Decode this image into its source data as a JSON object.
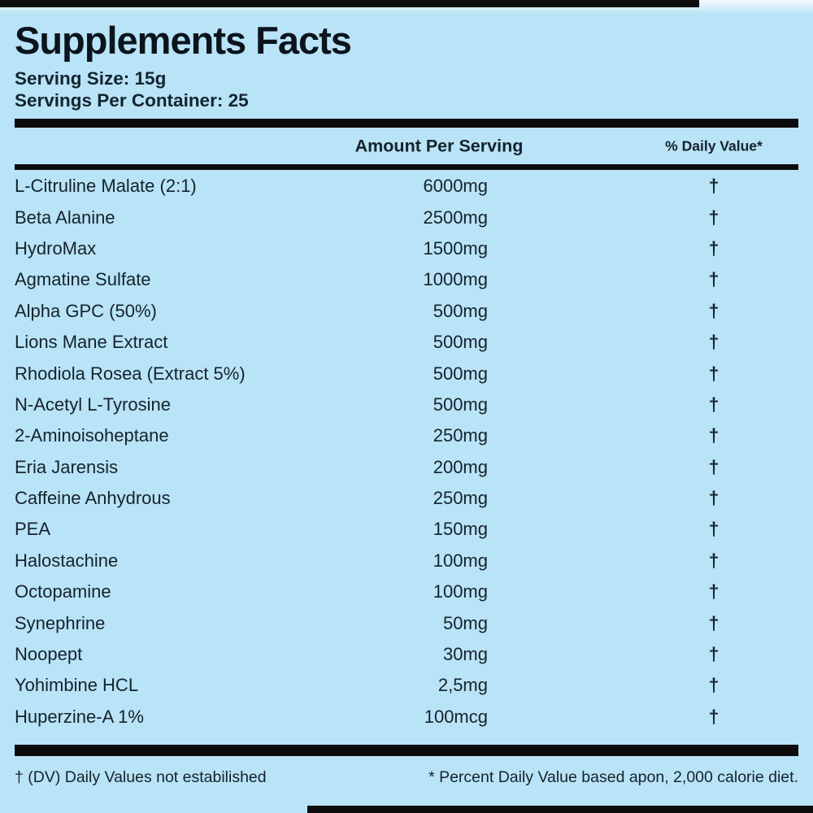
{
  "page": {
    "background_color": "#b9e3f6",
    "text_color": "#14232c",
    "bar_color": "#0c0c0c"
  },
  "header": {
    "title": "Supplements Facts",
    "serving_size": "Serving Size: 15g",
    "servings_per_container": "Servings Per Container: 25"
  },
  "table": {
    "columns": {
      "amount": "Amount Per Serving",
      "daily_value": "% Daily Value*"
    },
    "rows": [
      {
        "name": "L-Citruline Malate (2:1)",
        "amount": "6000mg",
        "dv": "†"
      },
      {
        "name": "Beta Alanine",
        "amount": "2500mg",
        "dv": "†"
      },
      {
        "name": "HydroMax",
        "amount": "1500mg",
        "dv": "†"
      },
      {
        "name": "Agmatine Sulfate",
        "amount": "1000mg",
        "dv": "†"
      },
      {
        "name": "Alpha GPC (50%)",
        "amount": "500mg",
        "dv": "†"
      },
      {
        "name": "Lions Mane Extract",
        "amount": "500mg",
        "dv": "†"
      },
      {
        "name": "Rhodiola Rosea (Extract 5%)",
        "amount": "500mg",
        "dv": "†"
      },
      {
        "name": "N-Acetyl L-Tyrosine",
        "amount": "500mg",
        "dv": "†"
      },
      {
        "name": "2-Aminoisoheptane",
        "amount": "250mg",
        "dv": "†"
      },
      {
        "name": "Eria Jarensis",
        "amount": "200mg",
        "dv": "†"
      },
      {
        "name": "Caffeine Anhydrous",
        "amount": "250mg",
        "dv": "†"
      },
      {
        "name": "PEA",
        "amount": "150mg",
        "dv": "†"
      },
      {
        "name": "Halostachine",
        "amount": "100mg",
        "dv": "†"
      },
      {
        "name": "Octopamine",
        "amount": "100mg",
        "dv": "†"
      },
      {
        "name": "Synephrine",
        "amount": "50mg",
        "dv": "†"
      },
      {
        "name": "Noopept",
        "amount": "30mg",
        "dv": "†"
      },
      {
        "name": "Yohimbine HCL",
        "amount": "2,5mg",
        "dv": "†"
      },
      {
        "name": "Huperzine-A 1%",
        "amount": "100mcg",
        "dv": "†"
      }
    ]
  },
  "footer": {
    "left": "† (DV) Daily Values not estabilished",
    "right": "* Percent Daily Value based apon, 2,000 calorie diet."
  }
}
